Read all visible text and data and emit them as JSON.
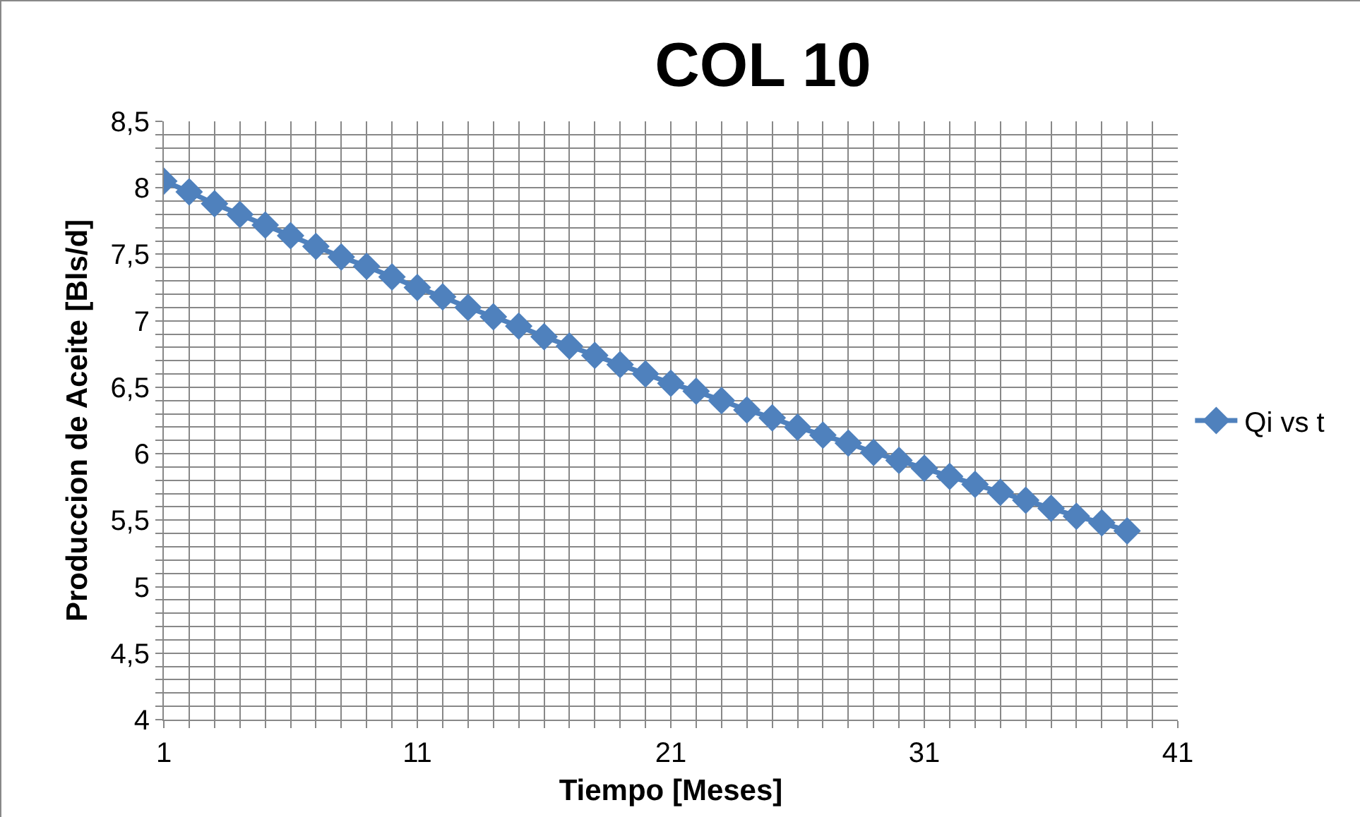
{
  "chart_data": {
    "type": "line",
    "title": "COL 10",
    "xlabel": "Tiempo [Meses]",
    "ylabel": "Produccion de Aceite [Bls/d]",
    "x": [
      1,
      2,
      3,
      4,
      5,
      6,
      7,
      8,
      9,
      10,
      11,
      12,
      13,
      14,
      15,
      16,
      17,
      18,
      19,
      20,
      21,
      22,
      23,
      24,
      25,
      26,
      27,
      28,
      29,
      30,
      31,
      32,
      33,
      34,
      35,
      36,
      37,
      38,
      39
    ],
    "series": [
      {
        "name": "Qi vs t",
        "color": "#4f81bd",
        "values": [
          8.05,
          7.97,
          7.88,
          7.8,
          7.72,
          7.64,
          7.56,
          7.48,
          7.41,
          7.33,
          7.25,
          7.18,
          7.1,
          7.03,
          6.96,
          6.88,
          6.81,
          6.74,
          6.67,
          6.6,
          6.53,
          6.47,
          6.4,
          6.33,
          6.27,
          6.2,
          6.14,
          6.08,
          6.01,
          5.95,
          5.89,
          5.83,
          5.77,
          5.71,
          5.65,
          5.59,
          5.53,
          5.48,
          5.42
        ]
      }
    ],
    "xlim": [
      1,
      41
    ],
    "xticks": [
      1,
      {
        "value": 2,
        "label": null
      },
      {
        "value": 3,
        "label": null
      },
      {
        "value": 4,
        "label": null
      },
      {
        "value": 5,
        "label": null
      },
      {
        "value": 6,
        "label": null
      },
      {
        "value": 7,
        "label": null
      },
      {
        "value": 8,
        "label": null
      },
      {
        "value": 9,
        "label": null
      },
      {
        "value": 10,
        "label": null
      },
      11,
      {
        "value": 12,
        "label": null
      },
      {
        "value": 13,
        "label": null
      },
      {
        "value": 14,
        "label": null
      },
      {
        "value": 15,
        "label": null
      },
      {
        "value": 16,
        "label": null
      },
      {
        "value": 17,
        "label": null
      },
      {
        "value": 18,
        "label": null
      },
      {
        "value": 19,
        "label": null
      },
      {
        "value": 20,
        "label": null
      },
      21,
      {
        "value": 22,
        "label": null
      },
      {
        "value": 23,
        "label": null
      },
      {
        "value": 24,
        "label": null
      },
      {
        "value": 25,
        "label": null
      },
      {
        "value": 26,
        "label": null
      },
      {
        "value": 27,
        "label": null
      },
      {
        "value": 28,
        "label": null
      },
      {
        "value": 29,
        "label": null
      },
      {
        "value": 30,
        "label": null
      },
      31,
      {
        "value": 32,
        "label": null
      },
      {
        "value": 33,
        "label": null
      },
      {
        "value": 34,
        "label": null
      },
      {
        "value": 35,
        "label": null
      },
      {
        "value": 36,
        "label": null
      },
      {
        "value": 37,
        "label": null
      },
      {
        "value": 38,
        "label": null
      },
      {
        "value": 39,
        "label": null
      },
      {
        "value": 40,
        "label": null
      },
      41
    ],
    "ylim": [
      4,
      8.5
    ],
    "yticks": [
      4,
      {
        "value": 4.1,
        "label": null
      },
      {
        "value": 4.2,
        "label": null
      },
      {
        "value": 4.3,
        "label": null
      },
      {
        "value": 4.4,
        "label": null
      },
      {
        "value": 4.5,
        "label": "4,5"
      },
      {
        "value": 4.6,
        "label": null
      },
      {
        "value": 4.7,
        "label": null
      },
      {
        "value": 4.8,
        "label": null
      },
      {
        "value": 4.9,
        "label": null
      },
      5,
      {
        "value": 5.1,
        "label": null
      },
      {
        "value": 5.2,
        "label": null
      },
      {
        "value": 5.3,
        "label": null
      },
      {
        "value": 5.4,
        "label": null
      },
      {
        "value": 5.5,
        "label": "5,5"
      },
      {
        "value": 5.6,
        "label": null
      },
      {
        "value": 5.7,
        "label": null
      },
      {
        "value": 5.8,
        "label": null
      },
      {
        "value": 5.9,
        "label": null
      },
      6,
      {
        "value": 6.1,
        "label": null
      },
      {
        "value": 6.2,
        "label": null
      },
      {
        "value": 6.3,
        "label": null
      },
      {
        "value": 6.4,
        "label": null
      },
      {
        "value": 6.5,
        "label": "6,5"
      },
      {
        "value": 6.6,
        "label": null
      },
      {
        "value": 6.7,
        "label": null
      },
      {
        "value": 6.8,
        "label": null
      },
      {
        "value": 6.9,
        "label": null
      },
      7,
      {
        "value": 7.1,
        "label": null
      },
      {
        "value": 7.2,
        "label": null
      },
      {
        "value": 7.3,
        "label": null
      },
      {
        "value": 7.4,
        "label": null
      },
      {
        "value": 7.5,
        "label": "7,5"
      },
      {
        "value": 7.6,
        "label": null
      },
      {
        "value": 7.7,
        "label": null
      },
      {
        "value": 7.8,
        "label": null
      },
      {
        "value": 7.9,
        "label": null
      },
      8,
      {
        "value": 8.1,
        "label": null
      },
      {
        "value": 8.2,
        "label": null
      },
      {
        "value": 8.3,
        "label": null
      },
      {
        "value": 8.4,
        "label": null
      },
      {
        "value": 8.5,
        "label": "8,5"
      }
    ],
    "grid": true,
    "legend": "right",
    "marker": "diamond",
    "line_style": "solid"
  }
}
